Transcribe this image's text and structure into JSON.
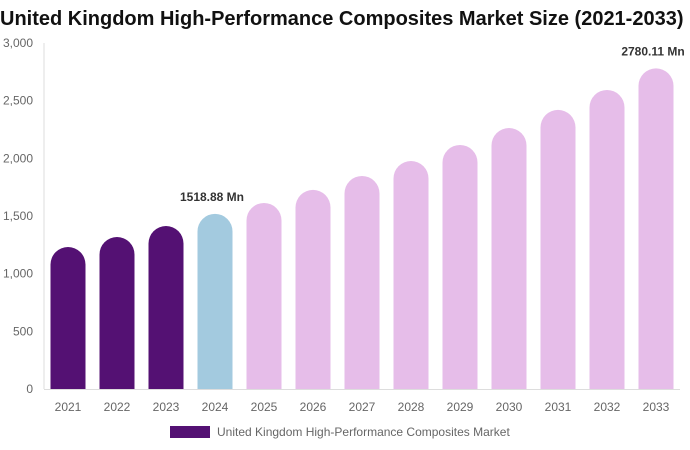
{
  "chart_data": {
    "type": "bar",
    "title": "United Kingdom High-Performance Composites Market Size (2021-2033)",
    "categories": [
      "2021",
      "2022",
      "2023",
      "2024",
      "2025",
      "2026",
      "2027",
      "2028",
      "2029",
      "2030",
      "2031",
      "2032",
      "2033"
    ],
    "series": [
      {
        "name": "United Kingdom High-Performance Composites Market",
        "values": [
          1231,
          1318,
          1413,
          1518.88,
          1613,
          1726,
          1847,
          1977,
          2116,
          2263,
          2420,
          2593,
          2780.11
        ]
      }
    ],
    "data_labels": {
      "3": "1518.88 Mn",
      "12": "2780.11 Mn"
    },
    "yticks": [
      "0",
      "500",
      "1,000",
      "1,500",
      "2,000",
      "2,500",
      "3,000"
    ],
    "ylim": [
      0,
      3000
    ],
    "grid": false,
    "legend_position": "bottom",
    "colors": {
      "historical": "#541173",
      "base_year": "#a3cadf",
      "forecast": "#e6bde9"
    }
  }
}
